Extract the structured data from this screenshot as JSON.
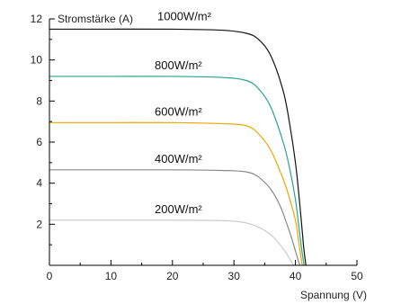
{
  "chart_data": {
    "type": "line",
    "xlabel": "Spannung (V)",
    "ylabel": "Stromstärke (A)",
    "xlim": [
      0,
      50
    ],
    "ylim": [
      0,
      12
    ],
    "x_ticks": [
      0,
      10,
      20,
      30,
      40,
      50
    ],
    "y_ticks": [
      2,
      4,
      6,
      8,
      10,
      12
    ],
    "grid": false,
    "series": [
      {
        "name": "1000W/m²",
        "color": "#111111",
        "x": [
          0,
          10,
          20,
          28,
          32,
          34,
          36,
          38,
          39,
          40,
          40.7,
          41.3,
          41.7
        ],
        "y": [
          11.5,
          11.5,
          11.5,
          11.45,
          11.3,
          11.0,
          10.2,
          8.5,
          7.0,
          5.0,
          3.0,
          1.0,
          0
        ]
      },
      {
        "name": "800W/m²",
        "color": "#2aa58a",
        "x": [
          0,
          10,
          20,
          28,
          32,
          34,
          36,
          38,
          39,
          40,
          40.5,
          41.0,
          41.4
        ],
        "y": [
          9.2,
          9.2,
          9.2,
          9.15,
          9.0,
          8.6,
          7.7,
          6.0,
          4.8,
          3.2,
          2.0,
          0.8,
          0
        ]
      },
      {
        "name": "600W/m²",
        "color": "#f0a500",
        "x": [
          0,
          10,
          20,
          28,
          32,
          34,
          36,
          38,
          39,
          40,
          40.4,
          40.8,
          41.1
        ],
        "y": [
          6.95,
          6.95,
          6.95,
          6.9,
          6.8,
          6.4,
          5.6,
          4.2,
          3.3,
          2.2,
          1.4,
          0.6,
          0
        ]
      },
      {
        "name": "400W/m²",
        "color": "#888888",
        "x": [
          0,
          10,
          20,
          28,
          32,
          34,
          36,
          37.5,
          38.5,
          39.3,
          39.9,
          40.4,
          40.7
        ],
        "y": [
          4.65,
          4.65,
          4.65,
          4.62,
          4.55,
          4.3,
          3.7,
          2.9,
          2.1,
          1.4,
          0.8,
          0.3,
          0
        ]
      },
      {
        "name": "200W/m²",
        "color": "#cccccc",
        "x": [
          0,
          10,
          20,
          28,
          31,
          33,
          35,
          36.5,
          37.5,
          38.3,
          38.9,
          39.4,
          39.7
        ],
        "y": [
          2.2,
          2.2,
          2.2,
          2.18,
          2.12,
          1.98,
          1.7,
          1.35,
          1.0,
          0.7,
          0.4,
          0.15,
          0
        ]
      }
    ]
  }
}
